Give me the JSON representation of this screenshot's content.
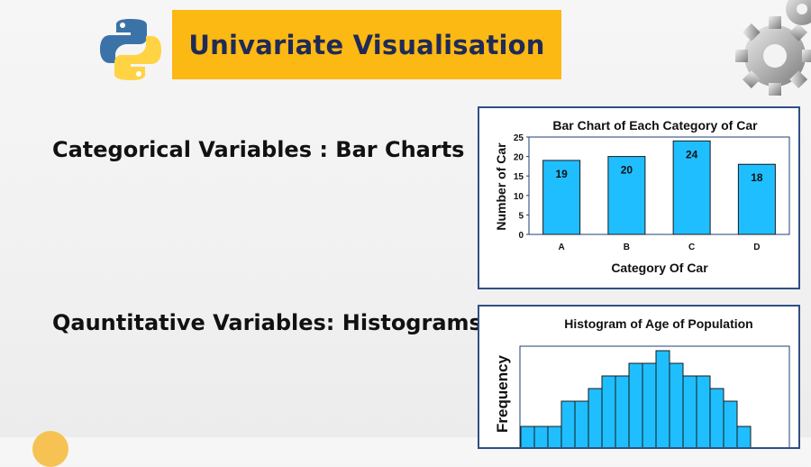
{
  "header": {
    "title": "Univariate Visualisation",
    "logo_icon": "python-logo-icon",
    "decoration_icon": "gears-icon",
    "banner_color": "#fcb813",
    "title_color": "#1f2a56"
  },
  "sections": {
    "categorical_label": "Categorical Variables : Bar Charts",
    "quantitative_label": "Qauntitative Variables: Histograms"
  },
  "chart_data": [
    {
      "type": "bar",
      "title": "Bar Chart of Each Category of Car",
      "xlabel": "Category Of Car",
      "ylabel": "Number of Car",
      "categories": [
        "A",
        "B",
        "C",
        "D"
      ],
      "values": [
        19,
        20,
        24,
        18
      ],
      "data_labels": [
        "19",
        "20",
        "24",
        "18"
      ],
      "yticks": [
        "0",
        "5",
        "10",
        "15",
        "20",
        "25"
      ],
      "ylim": [
        0,
        25
      ],
      "bar_color": "#1fbfff",
      "grid": false
    },
    {
      "type": "bar",
      "title": "Histogram of Age of Population",
      "xlabel": "",
      "ylabel": "Frequency",
      "values": [
        1,
        1,
        1,
        3,
        3,
        4,
        5,
        5,
        6,
        6,
        7,
        6,
        5,
        5,
        4,
        3,
        1
      ],
      "bar_color": "#1fbfff",
      "grid": false
    }
  ]
}
